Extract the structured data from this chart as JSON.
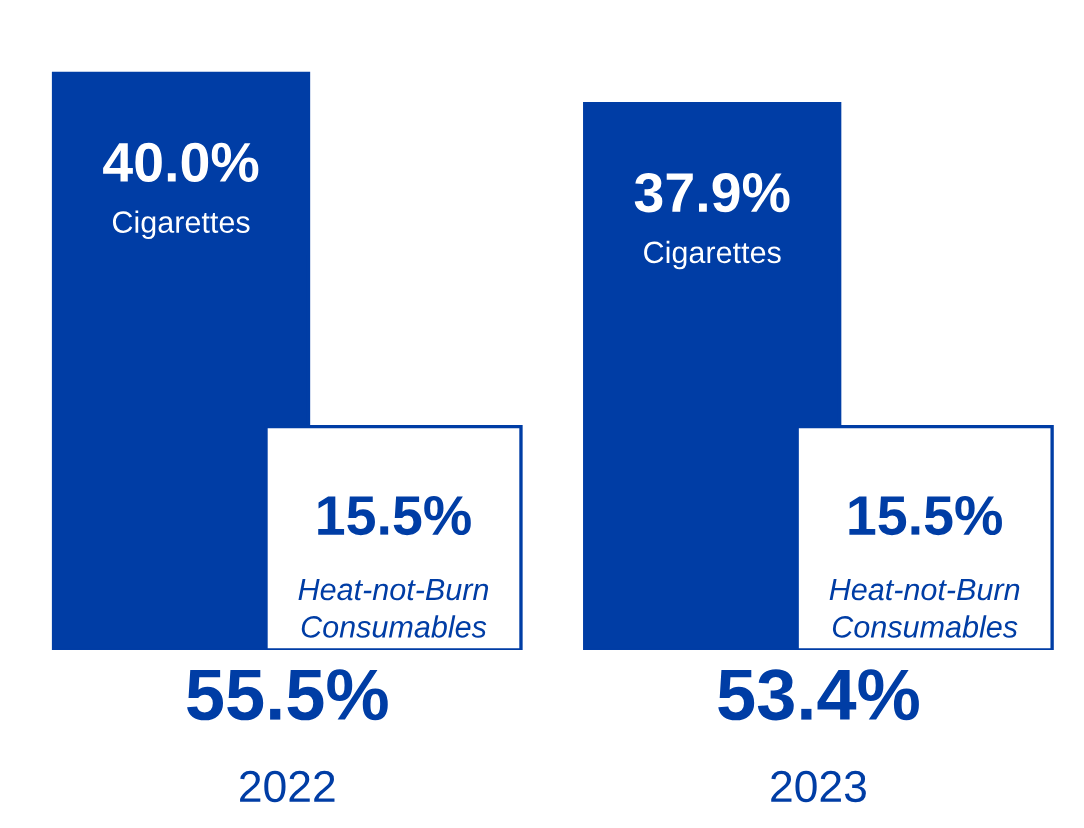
{
  "chart_data": {
    "type": "bar",
    "categories": [
      "2022",
      "2023"
    ],
    "series": [
      {
        "name": "Cigarettes",
        "color": "#003da5",
        "values": [
          40.0,
          37.9
        ],
        "value_labels": [
          "40.0%",
          "37.9%"
        ]
      },
      {
        "name": "Heat-not-Burn Consumables",
        "color": "#ffffff",
        "values": [
          15.5,
          15.5
        ],
        "value_labels": [
          "15.5%",
          "15.5%"
        ]
      }
    ],
    "totals": [
      "55.5%",
      "53.4%"
    ],
    "ylim": [
      0,
      40.5
    ],
    "legend": false
  }
}
